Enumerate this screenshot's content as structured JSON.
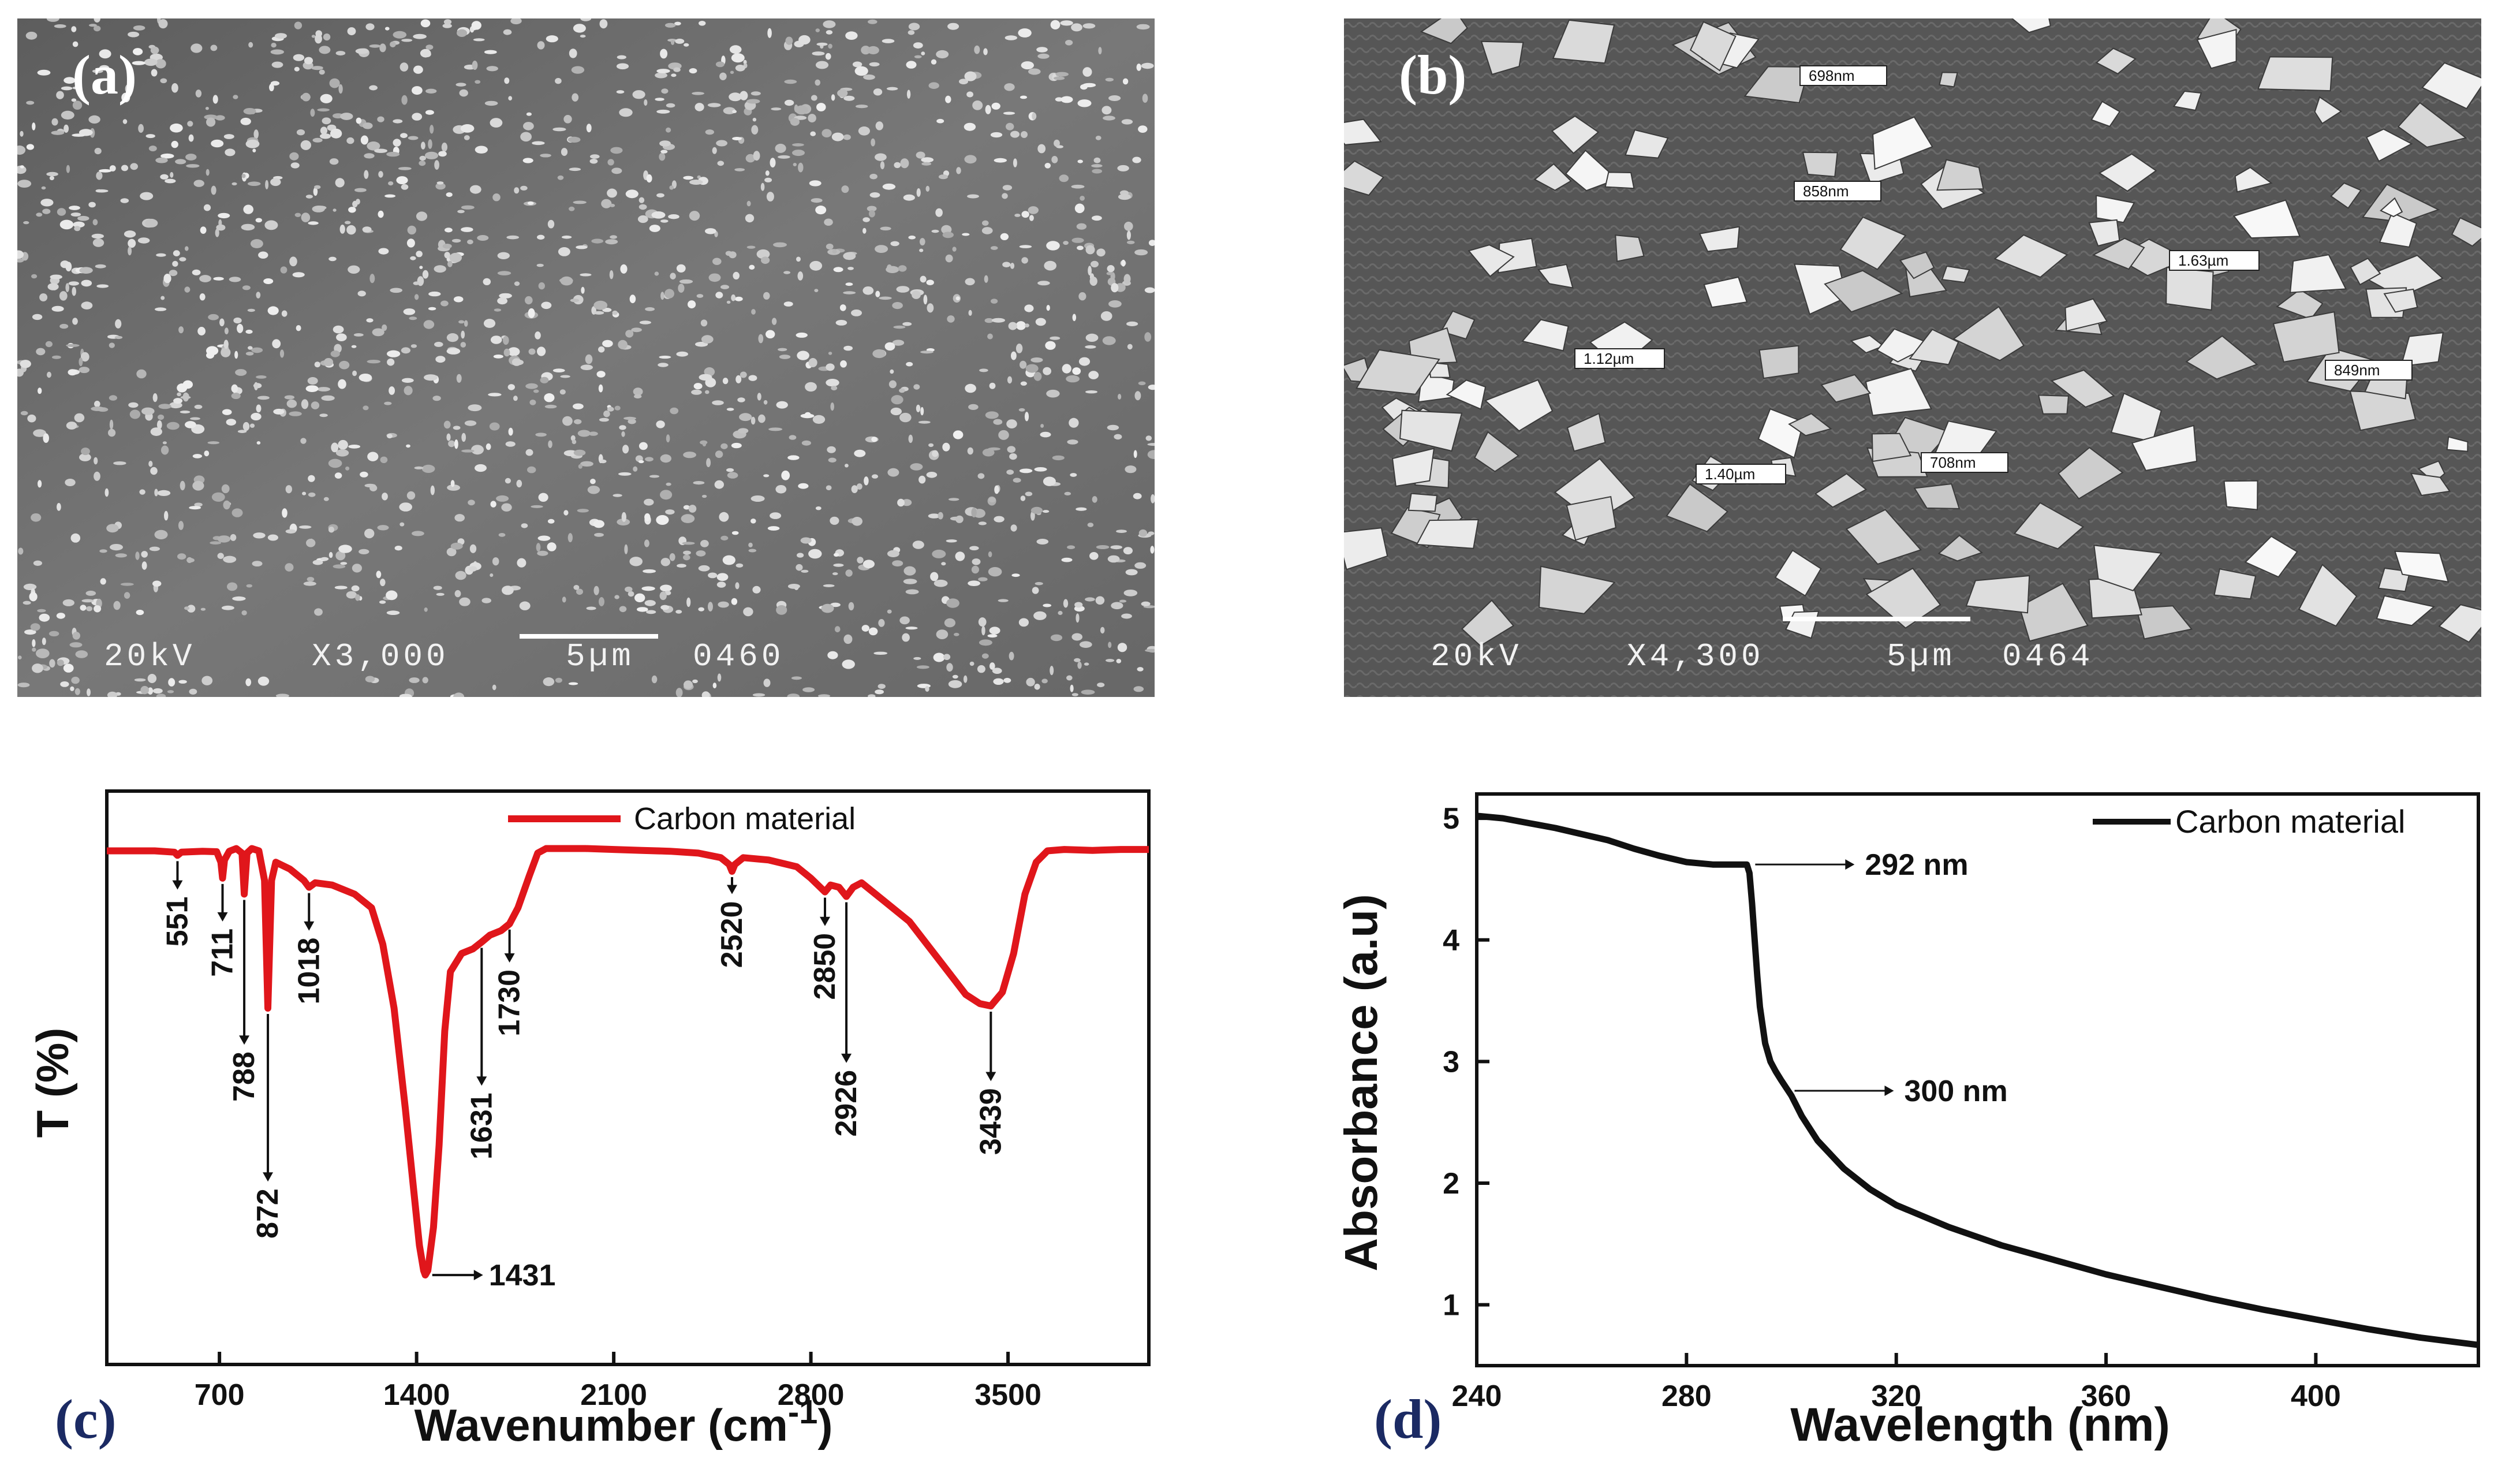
{
  "panels": {
    "a": {
      "label": "(a)",
      "sem_voltage": "20kV",
      "sem_magnification": "X3,000",
      "sem_scale": "5µm",
      "sem_id": "0460"
    },
    "b": {
      "label": "(b)",
      "sem_voltage": "20kV",
      "sem_magnification": "X4,300",
      "sem_scale": "5µm",
      "sem_id": "0464",
      "measurements": [
        "698nm",
        "858nm",
        "1.63µm",
        "1.12µm",
        "849nm",
        "1.40µm",
        "708nm"
      ]
    },
    "c": {
      "label": "(c)"
    },
    "d": {
      "label": "(d)"
    }
  },
  "chart_data": [
    {
      "type": "line",
      "panel": "c",
      "title": "",
      "xlabel": "Wavenumber (cm",
      "xlabel_sup": "-1",
      "xlabel_close": ")",
      "ylabel": "T (%)",
      "xlim": [
        300,
        4000
      ],
      "ylim": [
        0,
        100
      ],
      "xticks": [
        700,
        1400,
        2100,
        2800,
        3500
      ],
      "legend": "Carbon material",
      "legend_position": "top-center",
      "series": [
        {
          "name": "Carbon material",
          "color": "#e0161b",
          "x": [
            300,
            470,
            540,
            551,
            565,
            640,
            690,
            705,
            711,
            718,
            735,
            760,
            780,
            788,
            798,
            815,
            840,
            860,
            872,
            885,
            900,
            950,
            1000,
            1018,
            1040,
            1100,
            1180,
            1240,
            1280,
            1320,
            1360,
            1390,
            1410,
            1425,
            1431,
            1440,
            1460,
            1480,
            1500,
            1520,
            1560,
            1600,
            1631,
            1660,
            1700,
            1730,
            1760,
            1800,
            1830,
            1860,
            1900,
            2000,
            2100,
            2200,
            2300,
            2400,
            2480,
            2510,
            2520,
            2530,
            2560,
            2650,
            2750,
            2800,
            2850,
            2870,
            2900,
            2926,
            2950,
            2980,
            3050,
            3150,
            3250,
            3350,
            3400,
            3439,
            3480,
            3520,
            3560,
            3600,
            3640,
            3700,
            3800,
            3900,
            4000
          ],
          "y": [
            94.5,
            94.5,
            94.2,
            93.5,
            94.2,
            94.4,
            94.3,
            92.0,
            88.5,
            92.5,
            94.4,
            95.0,
            94.0,
            85.0,
            94.0,
            95.0,
            94.5,
            88.0,
            60.0,
            88.0,
            92.0,
            90.5,
            88.0,
            86.5,
            87.5,
            87.0,
            85.0,
            82.0,
            74.0,
            60.0,
            38.0,
            20.0,
            8.0,
            2.5,
            1.5,
            2.5,
            12.0,
            30.0,
            55.0,
            68.0,
            72.0,
            73.0,
            74.5,
            76.0,
            77.0,
            78.5,
            82.0,
            89.0,
            94.0,
            95.0,
            95.0,
            95.0,
            94.8,
            94.6,
            94.4,
            94.0,
            93.0,
            91.5,
            90.0,
            91.5,
            93.0,
            92.5,
            91.0,
            88.5,
            85.5,
            87.0,
            86.5,
            84.5,
            86.5,
            87.5,
            84.0,
            79.0,
            71.0,
            63.0,
            61.0,
            60.5,
            63.5,
            72.0,
            85.0,
            92.0,
            94.5,
            94.8,
            94.6,
            94.8,
            94.8
          ]
        }
      ],
      "annotations": [
        {
          "text": "551",
          "x": 551,
          "side": "below",
          "y_start": 93.5,
          "y_end": 86.0
        },
        {
          "text": "711",
          "x": 711,
          "side": "below",
          "y_start": 88.5,
          "y_end": 79.0
        },
        {
          "text": "788",
          "x": 788,
          "side": "below",
          "y_start": 85.0,
          "y_end": 52.0
        },
        {
          "text": "872",
          "x": 872,
          "side": "below",
          "y_start": 60.0,
          "y_end": 22.0
        },
        {
          "text": "1018",
          "x": 1018,
          "side": "below",
          "y_start": 86.5,
          "y_end": 77.0
        },
        {
          "text": "1431",
          "x": 1431,
          "side": "right",
          "y_start": 1.5,
          "y_end": 1.5
        },
        {
          "text": "1631",
          "x": 1631,
          "side": "below",
          "y_start": 74.5,
          "y_end": 43.0
        },
        {
          "text": "1730",
          "x": 1730,
          "side": "below",
          "y_start": 78.5,
          "y_end": 70.0
        },
        {
          "text": "2520",
          "x": 2520,
          "side": "below",
          "y_start": 90.0,
          "y_end": 85.0
        },
        {
          "text": "2850",
          "x": 2850,
          "side": "below",
          "y_start": 85.5,
          "y_end": 78.0
        },
        {
          "text": "2926",
          "x": 2926,
          "side": "below",
          "y_start": 84.5,
          "y_end": 48.0
        },
        {
          "text": "3439",
          "x": 3439,
          "side": "below",
          "y_start": 60.5,
          "y_end": 44.0
        }
      ]
    },
    {
      "type": "line",
      "panel": "d",
      "title": "",
      "xlabel": "Wavelength (nm)",
      "ylabel": "Absorbance (a.u)",
      "xlim": [
        240,
        431
      ],
      "ylim": [
        0.5,
        5.2
      ],
      "xticks": [
        240,
        280,
        320,
        360,
        400
      ],
      "yticks": [
        1,
        2,
        3,
        4,
        5
      ],
      "legend": "Carbon material",
      "legend_position": "top-right",
      "series": [
        {
          "name": "Carbon material",
          "color": "#111111",
          "x": [
            240,
            245,
            250,
            255,
            260,
            265,
            270,
            275,
            280,
            285,
            290,
            291.5,
            292,
            292.5,
            293,
            293.5,
            294,
            295,
            296,
            297,
            298,
            300,
            302,
            305,
            310,
            315,
            320,
            330,
            340,
            350,
            360,
            370,
            380,
            390,
            400,
            410,
            420,
            431
          ],
          "y": [
            5.02,
            5.0,
            4.96,
            4.92,
            4.87,
            4.82,
            4.75,
            4.69,
            4.64,
            4.62,
            4.62,
            4.62,
            4.55,
            4.3,
            4.0,
            3.7,
            3.45,
            3.15,
            3.0,
            2.92,
            2.85,
            2.72,
            2.55,
            2.35,
            2.12,
            1.95,
            1.82,
            1.64,
            1.49,
            1.37,
            1.25,
            1.15,
            1.05,
            0.96,
            0.88,
            0.8,
            0.73,
            0.67
          ]
        }
      ],
      "annotations": [
        {
          "text": "292 nm",
          "x": 292,
          "y": 4.62
        },
        {
          "text": "300 nm",
          "x": 299.5,
          "y": 2.76
        }
      ]
    }
  ]
}
